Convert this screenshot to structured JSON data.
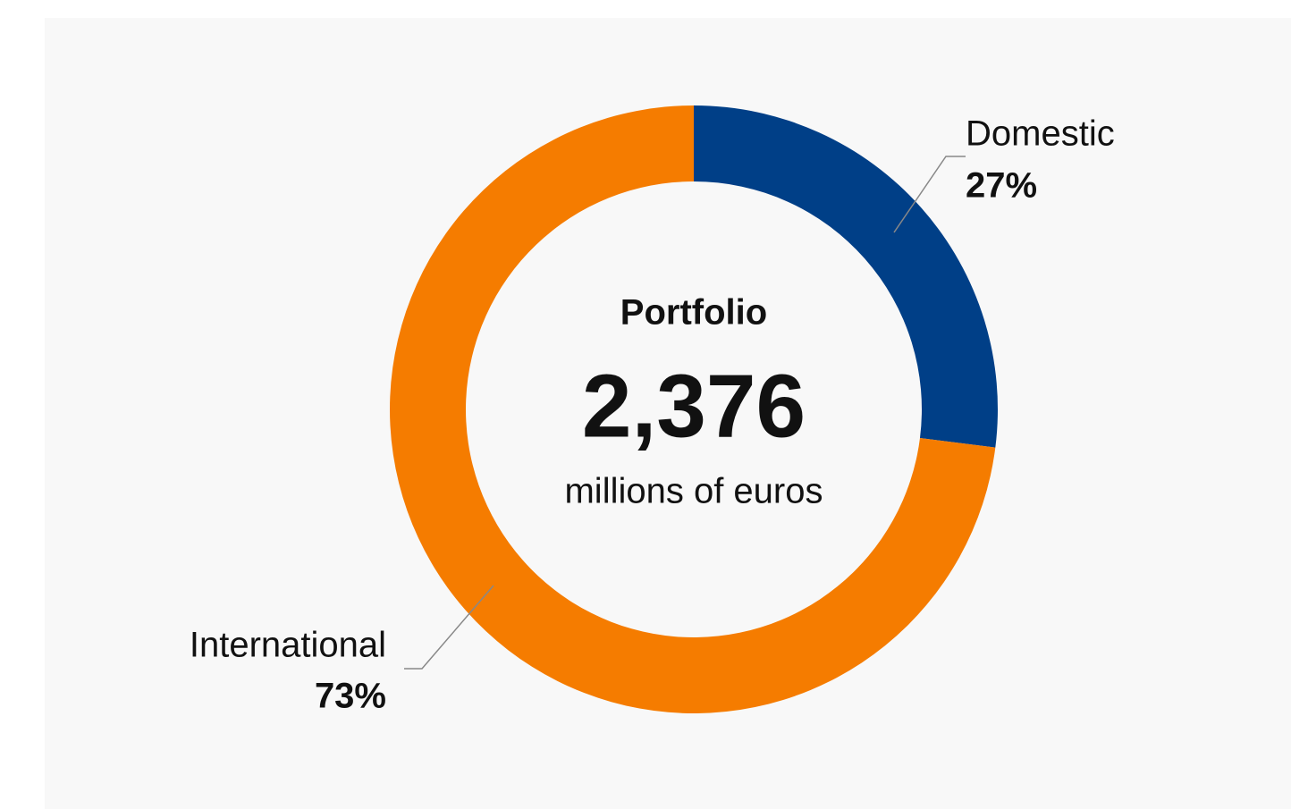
{
  "chart_data": {
    "type": "donut",
    "categories": [
      "Domestic",
      "International"
    ],
    "values": [
      27,
      73
    ],
    "value_labels": [
      "27%",
      "73%"
    ],
    "colors": [
      "#003f87",
      "#f57c00"
    ],
    "center_title": "Portfolio",
    "center_value": "2,376",
    "center_unit": "millions of euros"
  }
}
